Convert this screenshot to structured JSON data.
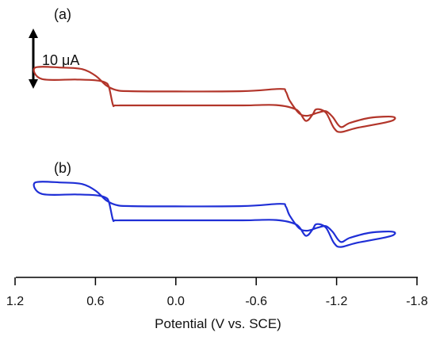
{
  "chart_data": {
    "type": "line",
    "xlabel": "Potential  (V vs. SCE)",
    "ylabel": "",
    "xlim": [
      1.2,
      -1.8
    ],
    "x_reversed": true,
    "ticks": [
      "1.2",
      "0.6",
      "0.0",
      "-0.6",
      "-1.2",
      "-1.8"
    ],
    "tick_values": [
      1.2,
      0.6,
      0.0,
      -0.6,
      -1.2,
      -1.8
    ],
    "scale_bar": {
      "label": "10 μA",
      "value_uA": 10
    },
    "panels": [
      {
        "label": "(a)",
        "color": "#b2352a",
        "series": [
          {
            "values": [
              [
                1.0,
                5.05
              ],
              [
                0.75,
                4.95
              ],
              [
                0.6,
                4.8
              ],
              [
                0.53,
                4.4
              ],
              [
                0.5,
                3.5
              ],
              [
                0.47,
                0.0
              ],
              [
                0.45,
                -0.15
              ],
              [
                0.35,
                -0.15
              ],
              [
                0.0,
                -0.15
              ],
              [
                -0.5,
                -0.15
              ],
              [
                -0.75,
                -0.1
              ],
              [
                -0.9,
                -1.0
              ],
              [
                -0.97,
                -3.2
              ],
              [
                -1.02,
                -2.0
              ],
              [
                -1.05,
                -0.9
              ],
              [
                -1.12,
                -1.6
              ],
              [
                -1.18,
                -4.6
              ],
              [
                -1.23,
                -5.4
              ],
              [
                -1.35,
                -4.6
              ],
              [
                -1.6,
                -3.3
              ],
              [
                -1.62,
                -2.4
              ],
              [
                -1.45,
                -2.6
              ],
              [
                -1.3,
                -3.6
              ],
              [
                -1.23,
                -4.4
              ],
              [
                -1.17,
                -2.4
              ],
              [
                -1.12,
                -1.3
              ],
              [
                -1.06,
                -1.6
              ],
              [
                -0.98,
                -2.2
              ],
              [
                -0.92,
                -1.7
              ],
              [
                -0.85,
                0.8
              ],
              [
                -0.82,
                2.6
              ],
              [
                -0.78,
                3.1
              ],
              [
                -0.5,
                2.65
              ],
              [
                0.0,
                2.6
              ],
              [
                0.35,
                2.65
              ],
              [
                0.45,
                2.9
              ],
              [
                0.52,
                3.8
              ],
              [
                0.6,
                5.7
              ],
              [
                0.7,
                7.0
              ],
              [
                0.85,
                7.3
              ],
              [
                1.05,
                7.3
              ]
            ]
          }
        ]
      },
      {
        "label": "(b)",
        "color": "#1f2fd6",
        "series": [
          {
            "values": [
              [
                1.0,
                5.05
              ],
              [
                0.75,
                4.95
              ],
              [
                0.6,
                4.8
              ],
              [
                0.53,
                4.4
              ],
              [
                0.5,
                3.5
              ],
              [
                0.47,
                0.0
              ],
              [
                0.45,
                -0.15
              ],
              [
                0.35,
                -0.15
              ],
              [
                0.0,
                -0.15
              ],
              [
                -0.5,
                -0.15
              ],
              [
                -0.75,
                -0.1
              ],
              [
                -0.9,
                -1.0
              ],
              [
                -0.97,
                -3.2
              ],
              [
                -1.02,
                -2.0
              ],
              [
                -1.05,
                -0.9
              ],
              [
                -1.12,
                -1.6
              ],
              [
                -1.18,
                -4.6
              ],
              [
                -1.23,
                -5.4
              ],
              [
                -1.35,
                -4.6
              ],
              [
                -1.6,
                -3.3
              ],
              [
                -1.62,
                -2.4
              ],
              [
                -1.45,
                -2.6
              ],
              [
                -1.3,
                -3.6
              ],
              [
                -1.23,
                -4.4
              ],
              [
                -1.17,
                -2.4
              ],
              [
                -1.12,
                -1.3
              ],
              [
                -1.06,
                -1.6
              ],
              [
                -0.98,
                -2.2
              ],
              [
                -0.92,
                -1.7
              ],
              [
                -0.85,
                0.8
              ],
              [
                -0.82,
                2.6
              ],
              [
                -0.78,
                3.1
              ],
              [
                -0.5,
                2.65
              ],
              [
                0.0,
                2.6
              ],
              [
                0.35,
                2.65
              ],
              [
                0.45,
                2.9
              ],
              [
                0.52,
                3.8
              ],
              [
                0.6,
                5.7
              ],
              [
                0.7,
                7.0
              ],
              [
                0.85,
                7.3
              ],
              [
                1.05,
                7.3
              ]
            ]
          }
        ]
      }
    ]
  }
}
